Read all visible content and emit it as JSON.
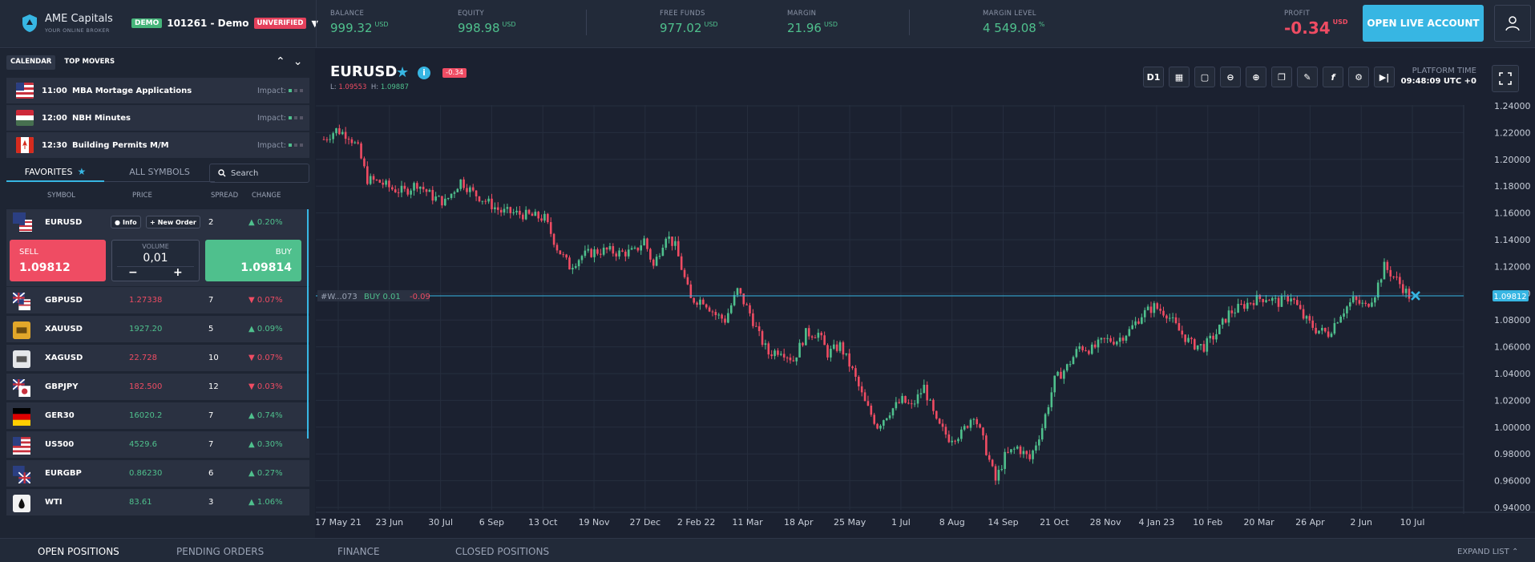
{
  "brand": {
    "name": "AME Capitals",
    "tagline": "YOUR ONLINE BROKER"
  },
  "account": {
    "mode": "DEMO",
    "number": "101261 - Demo",
    "status": "UNVERIFIED"
  },
  "stats": {
    "balance": {
      "label": "BALANCE",
      "value": "999.32",
      "unit": "USD"
    },
    "equity": {
      "label": "EQUITY",
      "value": "998.98",
      "unit": "USD"
    },
    "free_funds": {
      "label": "FREE FUNDS",
      "value": "977.02",
      "unit": "USD"
    },
    "margin": {
      "label": "MARGIN",
      "value": "21.96",
      "unit": "USD"
    },
    "margin_level": {
      "label": "MARGIN LEVEL",
      "value": "4 549.08",
      "unit": "%"
    },
    "profit": {
      "label": "PROFIT",
      "value": "-0.34",
      "unit": "USD"
    }
  },
  "header_buttons": {
    "live": "OPEN LIVE ACCOUNT"
  },
  "calendar": {
    "tabs": [
      "CALENDAR",
      "TOP MOVERS"
    ],
    "impact_label": "Impact:",
    "events": [
      {
        "flag": "us",
        "time": "11:00",
        "title": "MBA Mortage Applications"
      },
      {
        "flag": "hu",
        "time": "12:00",
        "title": "NBH Minutes"
      },
      {
        "flag": "ca",
        "time": "12:30",
        "title": "Building Permits M/M"
      }
    ]
  },
  "symbols": {
    "tabs": {
      "favorites": "FAVORITES",
      "all": "ALL SYMBOLS"
    },
    "search_placeholder": "Search",
    "columns": {
      "symbol": "SYMBOL",
      "price": "PRICE",
      "spread": "SPREAD",
      "change": "CHANGE"
    },
    "expanded": {
      "name": "EURUSD",
      "info": "Info",
      "new_order": "New Order",
      "spread": "2",
      "change": "0.20%",
      "sell_label": "SELL",
      "sell_price": "1.09812",
      "buy_label": "BUY",
      "buy_price": "1.09814",
      "volume_label": "VOLUME",
      "volume": "0,01",
      "minus": "−",
      "plus": "+"
    },
    "rows": [
      {
        "name": "GBPUSD",
        "price": "1.27338",
        "spread": "7",
        "change": "0.07%",
        "dir": "down",
        "icon": "gb-us"
      },
      {
        "name": "XAUUSD",
        "price": "1927.20",
        "spread": "5",
        "change": "0.09%",
        "dir": "up",
        "icon": "gold"
      },
      {
        "name": "XAGUSD",
        "price": "22.728",
        "spread": "10",
        "change": "0.07%",
        "dir": "down",
        "icon": "silver"
      },
      {
        "name": "GBPJPY",
        "price": "182.500",
        "spread": "12",
        "change": "0.03%",
        "dir": "down",
        "icon": "gb-jp"
      },
      {
        "name": "GER30",
        "price": "16020.2",
        "spread": "7",
        "change": "0.74%",
        "dir": "up",
        "icon": "de"
      },
      {
        "name": "US500",
        "price": "4529.6",
        "spread": "7",
        "change": "0.30%",
        "dir": "up",
        "icon": "us"
      },
      {
        "name": "EURGBP",
        "price": "0.86230",
        "spread": "6",
        "change": "0.27%",
        "dir": "up",
        "icon": "eu-gb"
      },
      {
        "name": "WTI",
        "price": "83.61",
        "spread": "3",
        "change": "1.06%",
        "dir": "up",
        "icon": "oil"
      }
    ]
  },
  "chart": {
    "symbol": "EURUSD",
    "change_badge": "-0.34",
    "low_label": "L:",
    "low": "1.09553",
    "high_label": "H:",
    "high": "1.09887",
    "timeframe": "D1",
    "platform_time_label": "PLATFORM TIME",
    "platform_time": "09:48:09 UTC +0",
    "position_line": {
      "id": "#W...073",
      "side": "BUY 0.01",
      "pnl": "-0.09",
      "price": "1.09812"
    },
    "colors": {
      "up": "#4fc08d",
      "down": "#ef4c63",
      "line": "#37b6e3"
    }
  },
  "chart_data": {
    "type": "candlestick",
    "y_ticks": [
      "1.24000",
      "1.22000",
      "1.20000",
      "1.18000",
      "1.16000",
      "1.14000",
      "1.12000",
      "1.10000",
      "1.08000",
      "1.06000",
      "1.04000",
      "1.02000",
      "1.00000",
      "0.98000",
      "0.96000",
      "0.94000"
    ],
    "ylim": [
      0.94,
      1.24
    ],
    "x_ticks": [
      "17 May 21",
      "23 Jun",
      "30 Jul",
      "6 Sep",
      "13 Oct",
      "19 Nov",
      "27 Dec",
      "2 Feb 22",
      "11 Mar",
      "18 Apr",
      "25 May",
      "1 Jul",
      "8 Aug",
      "14 Sep",
      "21 Oct",
      "28 Nov",
      "4 Jan 23",
      "10 Feb",
      "20 Mar",
      "26 Apr",
      "2 Jun",
      "10 Jul"
    ],
    "path": [
      [
        0,
        1.215
      ],
      [
        4,
        1.222
      ],
      [
        8,
        1.218
      ],
      [
        11,
        1.208
      ],
      [
        14,
        1.185
      ],
      [
        18,
        1.183
      ],
      [
        22,
        1.178
      ],
      [
        26,
        1.176
      ],
      [
        30,
        1.182
      ],
      [
        35,
        1.172
      ],
      [
        39,
        1.168
      ],
      [
        44,
        1.184
      ],
      [
        48,
        1.175
      ],
      [
        52,
        1.169
      ],
      [
        57,
        1.161
      ],
      [
        61,
        1.16
      ],
      [
        66,
        1.158
      ],
      [
        71,
        1.156
      ],
      [
        75,
        1.134
      ],
      [
        79,
        1.12
      ],
      [
        83,
        1.128
      ],
      [
        87,
        1.131
      ],
      [
        91,
        1.132
      ],
      [
        95,
        1.13
      ],
      [
        100,
        1.131
      ],
      [
        103,
        1.14
      ],
      [
        106,
        1.12
      ],
      [
        110,
        1.144
      ],
      [
        113,
        1.135
      ],
      [
        118,
        1.095
      ],
      [
        122,
        1.095
      ],
      [
        126,
        1.084
      ],
      [
        129,
        1.08
      ],
      [
        133,
        1.102
      ],
      [
        137,
        1.085
      ],
      [
        140,
        1.068
      ],
      [
        143,
        1.055
      ],
      [
        147,
        1.058
      ],
      [
        151,
        1.05
      ],
      [
        155,
        1.07
      ],
      [
        159,
        1.07
      ],
      [
        162,
        1.055
      ],
      [
        166,
        1.061
      ],
      [
        170,
        1.042
      ],
      [
        174,
        1.018
      ],
      [
        178,
        1.001
      ],
      [
        182,
        1.012
      ],
      [
        186,
        1.02
      ],
      [
        189,
        1.015
      ],
      [
        193,
        1.03
      ],
      [
        197,
        1.003
      ],
      [
        201,
        0.992
      ],
      [
        205,
        0.995
      ],
      [
        209,
        1.01
      ],
      [
        212,
        0.99
      ],
      [
        216,
        0.96
      ],
      [
        219,
        0.978
      ],
      [
        223,
        0.985
      ],
      [
        227,
        0.976
      ],
      [
        231,
        1.0
      ],
      [
        235,
        1.035
      ],
      [
        239,
        1.045
      ],
      [
        243,
        1.06
      ],
      [
        247,
        1.058
      ],
      [
        251,
        1.065
      ],
      [
        255,
        1.065
      ],
      [
        259,
        1.072
      ],
      [
        263,
        1.084
      ],
      [
        267,
        1.09
      ],
      [
        271,
        1.085
      ],
      [
        275,
        1.072
      ],
      [
        279,
        1.062
      ],
      [
        283,
        1.06
      ],
      [
        287,
        1.07
      ],
      [
        291,
        1.085
      ],
      [
        295,
        1.09
      ],
      [
        299,
        1.095
      ],
      [
        303,
        1.097
      ],
      [
        307,
        1.093
      ],
      [
        311,
        1.098
      ],
      [
        315,
        1.082
      ],
      [
        319,
        1.073
      ],
      [
        323,
        1.07
      ],
      [
        327,
        1.085
      ],
      [
        331,
        1.095
      ],
      [
        335,
        1.09
      ],
      [
        338,
        1.1
      ],
      [
        341,
        1.12
      ],
      [
        345,
        1.11
      ],
      [
        349,
        1.098
      ]
    ],
    "current_price": 1.09812
  }
}
